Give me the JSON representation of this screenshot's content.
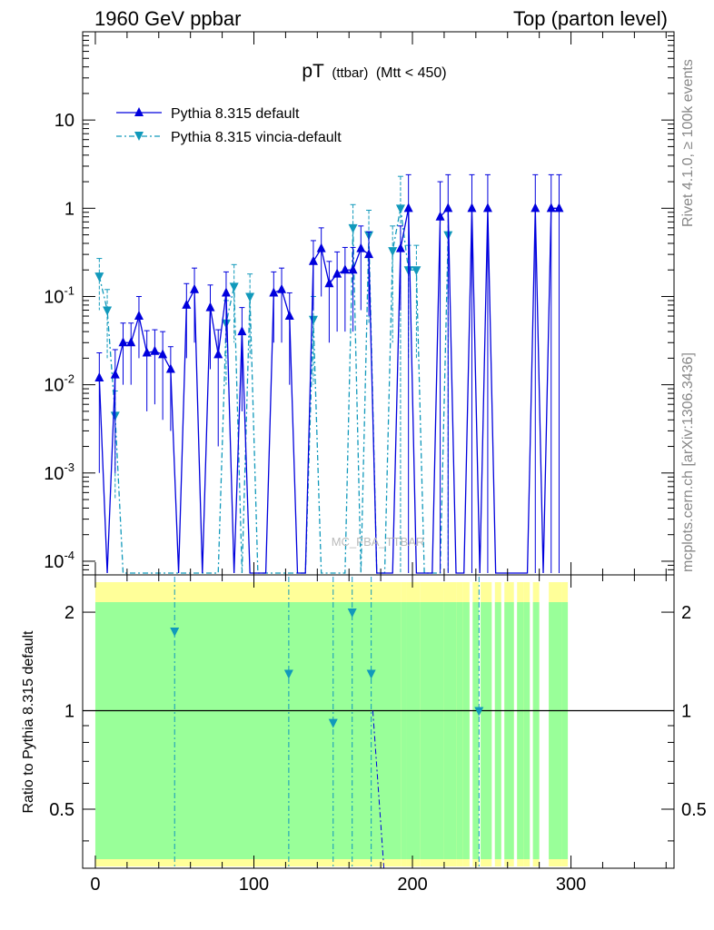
{
  "header": {
    "left": "1960 GeV ppbar",
    "right": "Top (parton level)"
  },
  "side_text": {
    "top": "Rivet 4.1.0, ≥ 100k events",
    "bottom": "mcplots.cern.ch [arXiv:1306.3436]"
  },
  "watermark": "MC_FBA_TTBAR",
  "colors": {
    "default": "#0000dd",
    "vincia": "#1199bb",
    "band_green": "#99ff99",
    "band_yellow": "#ffff99"
  },
  "chart_data": [
    {
      "type": "line",
      "title": "pT (ttbar) (Mtt < 450)",
      "title_main": "pT",
      "title_small": "(ttbar)",
      "title_rest": "(Mtt < 450)",
      "xlabel": "",
      "ylabel": "",
      "xlim": [
        -8,
        365
      ],
      "ylim": [
        7e-05,
        100
      ],
      "yscale": "log",
      "y_tick_labels": [
        "10^-4",
        "10^-3",
        "10^-2",
        "10^-1",
        "1",
        "10"
      ],
      "legend_position": "top-left",
      "series": [
        {
          "name": "Pythia 8.315 default",
          "marker": "triangle-up",
          "x": [
            2.5,
            12.5,
            17.5,
            22.5,
            27.5,
            32.5,
            37.5,
            42.5,
            47.5,
            57.5,
            62.5,
            72.5,
            77.5,
            82.5,
            92.5,
            112.5,
            117.5,
            122.5,
            137.5,
            142.5,
            147.5,
            152.5,
            157.5,
            162.5,
            167.5,
            172.5,
            192.5,
            197.5,
            217.5,
            222.5,
            237.5,
            247.5,
            277.5,
            287.5,
            292.5
          ],
          "y": [
            0.012,
            0.013,
            0.03,
            0.03,
            0.06,
            0.023,
            0.024,
            0.022,
            0.015,
            0.08,
            0.12,
            0.075,
            0.022,
            0.11,
            0.04,
            0.11,
            0.12,
            0.06,
            0.25,
            0.35,
            0.14,
            0.18,
            0.2,
            0.2,
            0.35,
            0.3,
            0.35,
            1.0,
            0.8,
            1.0,
            1.0,
            1.0,
            1.0,
            1.0,
            1.0
          ],
          "y_err": [
            0.011,
            0.012,
            0.02,
            0.02,
            0.04,
            0.018,
            0.018,
            0.018,
            0.012,
            0.06,
            0.09,
            0.06,
            0.02,
            0.08,
            0.035,
            0.08,
            0.09,
            0.05,
            0.18,
            0.25,
            0.11,
            0.14,
            0.16,
            0.16,
            0.28,
            0.24,
            0.28,
            1.4,
            1.2,
            1.4,
            1.4,
            1.4,
            1.4,
            1.4,
            1.4
          ]
        },
        {
          "name": "Pythia 8.315 vincia-default",
          "marker": "triangle-down",
          "x": [
            2.5,
            7.5,
            12.5,
            82.5,
            87.5,
            97.5,
            137.5,
            162.5,
            172.5,
            187.5,
            192.5,
            197.5,
            202.5,
            222.5
          ],
          "y": [
            0.17,
            0.07,
            0.0045,
            0.05,
            0.13,
            0.1,
            0.055,
            0.6,
            0.5,
            0.33,
            1.0,
            0.2,
            0.2,
            0.5
          ],
          "y_err": [
            0.1,
            0.05,
            0.004,
            0.04,
            0.1,
            0.08,
            0.045,
            0.5,
            0.45,
            0.3,
            1.3,
            0.18,
            0.18,
            0.5
          ]
        }
      ]
    },
    {
      "type": "line",
      "title": "",
      "xlabel": "",
      "ylabel": "Ratio to Pythia 8.315 default",
      "xlim": [
        -8,
        365
      ],
      "ylim": [
        0.33,
        2.6
      ],
      "yscale": "log",
      "x_ticks": [
        0,
        100,
        200,
        300
      ],
      "y_ticks": [
        0.5,
        1,
        2
      ],
      "series": [
        {
          "name": "Pythia 8.315 vincia-default",
          "x": [
            50,
            122,
            150,
            162,
            174,
            242
          ],
          "y": [
            1.75,
            1.3,
            0.92,
            2.0,
            1.3,
            1.0
          ]
        }
      ],
      "band": {
        "x_ranges": [
          [
            0,
            193
          ],
          [
            193,
            196
          ],
          [
            196,
            205
          ],
          [
            205,
            220
          ],
          [
            220,
            228
          ],
          [
            228,
            232
          ],
          [
            232,
            236
          ],
          [
            238,
            242
          ],
          [
            243,
            250
          ],
          [
            252,
            256
          ],
          [
            258,
            264
          ],
          [
            266,
            270
          ],
          [
            270,
            274
          ],
          [
            276,
            280
          ],
          [
            286,
            294
          ],
          [
            294,
            298
          ]
        ]
      }
    }
  ]
}
